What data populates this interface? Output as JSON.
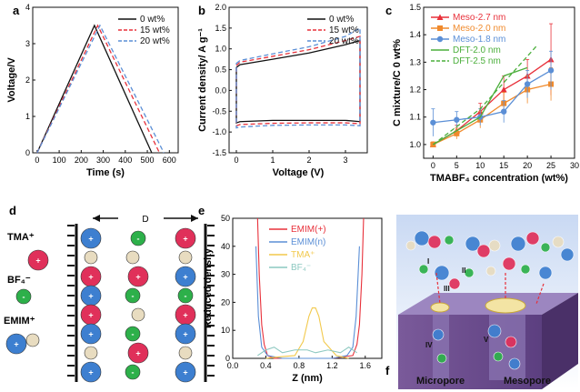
{
  "panel_letters": [
    "a",
    "b",
    "c",
    "d",
    "e",
    "f"
  ],
  "colors": {
    "black": "#111111",
    "red": "#e8303a",
    "blue": "#5b8fd6",
    "orange": "#f08a2c",
    "green": "#4caf3c",
    "teal": "#8cc8c0",
    "tma": "#e0305a",
    "bf4": "#2db04a",
    "emim": "#3d7fd0",
    "beige": "#e8dcc0"
  },
  "diagram_d": {
    "gap_label": "D",
    "legend": [
      {
        "label": "TMA⁺",
        "icon": "tma-ion"
      },
      {
        "label": "BF₄⁻",
        "icon": "bf4-ion"
      },
      {
        "label": "EMIM⁺",
        "icon": "emim-ion"
      }
    ]
  },
  "diagram_f": {
    "labels": [
      "Micropore",
      "Mesopore"
    ],
    "markers": [
      "I",
      "II",
      "III",
      "IV",
      "V"
    ]
  },
  "chart_data": [
    {
      "panel": "a",
      "type": "line",
      "xlabel": "Time (s)",
      "ylabel": "Voltage/V",
      "xlim": [
        -20,
        640
      ],
      "ylim": [
        0,
        4
      ],
      "xticks": [
        0,
        100,
        200,
        300,
        400,
        500,
        600
      ],
      "yticks": [
        0,
        1,
        2,
        3,
        4
      ],
      "legend_position": "top-right",
      "series": [
        {
          "name": "0 wt%",
          "style": "solid",
          "color": "#111111",
          "x": [
            0,
            260,
            520
          ],
          "y": [
            0,
            3.5,
            0
          ]
        },
        {
          "name": "15 wt%",
          "style": "dashed",
          "color": "#e8303a",
          "x": [
            0,
            275,
            555
          ],
          "y": [
            0,
            3.5,
            0
          ]
        },
        {
          "name": "20 wt%",
          "style": "dashed",
          "color": "#5b8fd6",
          "x": [
            0,
            285,
            575
          ],
          "y": [
            0,
            3.5,
            0
          ]
        }
      ]
    },
    {
      "panel": "b",
      "type": "line",
      "xlabel": "Voltage (V)",
      "ylabel": "Current density/ A g⁻¹",
      "xlim": [
        -0.2,
        3.6
      ],
      "ylim": [
        -1.5,
        2.0
      ],
      "xticks": [
        0,
        1,
        2,
        3
      ],
      "yticks": [
        -1.5,
        -1.0,
        -0.5,
        0.0,
        0.5,
        1.0,
        1.5,
        2.0
      ],
      "legend_position": "top-right",
      "series": [
        {
          "name": "0 wt%",
          "style": "solid",
          "color": "#111111",
          "upper": [
            [
              0,
              0.55
            ],
            [
              0.1,
              0.62
            ],
            [
              1,
              0.75
            ],
            [
              2,
              0.9
            ],
            [
              3,
              1.1
            ],
            [
              3.4,
              1.2
            ]
          ],
          "lower": [
            [
              3.4,
              -0.75
            ],
            [
              3,
              -0.72
            ],
            [
              2,
              -0.72
            ],
            [
              1,
              -0.72
            ],
            [
              0.1,
              -0.75
            ],
            [
              0,
              -0.78
            ]
          ]
        },
        {
          "name": "15 wt%",
          "style": "dashed",
          "color": "#e8303a",
          "upper": [
            [
              0,
              0.6
            ],
            [
              0.1,
              0.68
            ],
            [
              1,
              0.82
            ],
            [
              2,
              0.98
            ],
            [
              3,
              1.2
            ],
            [
              3.4,
              1.3
            ]
          ],
          "lower": [
            [
              3.4,
              -0.8
            ],
            [
              3,
              -0.78
            ],
            [
              2,
              -0.78
            ],
            [
              1,
              -0.79
            ],
            [
              0.1,
              -0.82
            ],
            [
              0,
              -0.85
            ]
          ]
        },
        {
          "name": "20 wt%",
          "style": "dashed",
          "color": "#5b8fd6",
          "upper": [
            [
              0,
              0.65
            ],
            [
              0.1,
              0.72
            ],
            [
              1,
              0.88
            ],
            [
              2,
              1.05
            ],
            [
              3,
              1.3
            ],
            [
              3.4,
              1.5
            ]
          ],
          "lower": [
            [
              3.4,
              -0.85
            ],
            [
              3,
              -0.83
            ],
            [
              2,
              -0.83
            ],
            [
              1,
              -0.84
            ],
            [
              0.1,
              -0.88
            ],
            [
              0,
              -0.9
            ]
          ]
        }
      ]
    },
    {
      "panel": "c",
      "type": "line",
      "xlabel": "TMABF₄ concentration (wt%)",
      "ylabel": "C mixture/C 0 wt%",
      "xlim": [
        -2,
        30
      ],
      "ylim": [
        0.95,
        1.5
      ],
      "xticks": [
        0,
        5,
        10,
        15,
        20,
        25,
        30
      ],
      "yticks": [
        1.0,
        1.1,
        1.2,
        1.3,
        1.4,
        1.5
      ],
      "legend_position": "top-left",
      "series": [
        {
          "name": "Meso-2.7 nm",
          "style": "solid",
          "marker": "triangle",
          "color": "#e8303a",
          "x": [
            0,
            5,
            10,
            15,
            20,
            25
          ],
          "y": [
            1.0,
            1.05,
            1.12,
            1.2,
            1.25,
            1.31
          ],
          "err": [
            0.01,
            0.02,
            0.03,
            0.05,
            0.06,
            0.13
          ]
        },
        {
          "name": "Meso-2.0 nm",
          "style": "solid",
          "marker": "square",
          "color": "#f08a2c",
          "x": [
            0,
            5,
            10,
            15,
            20,
            25
          ],
          "y": [
            1.0,
            1.04,
            1.09,
            1.15,
            1.2,
            1.22
          ],
          "err": [
            0.01,
            0.02,
            0.03,
            0.04,
            0.05,
            0.06
          ]
        },
        {
          "name": "Meso-1.8 nm",
          "style": "solid",
          "marker": "circle",
          "color": "#5b8fd6",
          "x": [
            0,
            5,
            10,
            15,
            20,
            25
          ],
          "y": [
            1.08,
            1.09,
            1.1,
            1.12,
            1.22,
            1.27
          ],
          "err": [
            0.05,
            0.03,
            0.03,
            0.04,
            0.05,
            0.07
          ]
        },
        {
          "name": "DFT-2.0 nm",
          "style": "solid",
          "marker": "none",
          "color": "#4caf3c",
          "x": [
            0,
            10,
            15,
            20
          ],
          "y": [
            1.0,
            1.1,
            1.25,
            1.28
          ]
        },
        {
          "name": "DFT-2.5 nm",
          "style": "dashed",
          "marker": "none",
          "color": "#4caf3c",
          "x": [
            0,
            10,
            22
          ],
          "y": [
            1.0,
            1.13,
            1.36
          ]
        }
      ]
    },
    {
      "panel": "e",
      "type": "line",
      "xlabel": "Z (nm)",
      "ylabel": "Reduced density",
      "xlim": [
        0.0,
        1.8
      ],
      "ylim": [
        0,
        50
      ],
      "xticks": [
        0.0,
        0.4,
        0.8,
        1.2,
        1.6
      ],
      "yticks": [
        0,
        10,
        20,
        30,
        40,
        50
      ],
      "legend_position": "top-center",
      "series": [
        {
          "name": "EMIM(+)",
          "color": "#e8303a",
          "x": [
            0.3,
            0.32,
            0.35,
            0.38,
            0.42,
            0.5,
            0.8,
            1.2,
            1.45,
            1.5,
            1.53,
            1.56,
            1.58
          ],
          "y": [
            50,
            30,
            12,
            5,
            1,
            0,
            0,
            0,
            1,
            5,
            12,
            30,
            50
          ]
        },
        {
          "name": "EMIM(n)",
          "color": "#5b8fd6",
          "x": [
            0.28,
            0.31,
            0.35,
            0.42,
            0.6,
            0.9,
            1.2,
            1.38,
            1.45,
            1.49,
            1.53
          ],
          "y": [
            40,
            15,
            4,
            1,
            0,
            0,
            0,
            1,
            4,
            15,
            40
          ]
        },
        {
          "name": "TMA⁺",
          "color": "#f2c94c",
          "x": [
            0.4,
            0.55,
            0.75,
            0.85,
            0.92,
            0.96,
            1.0,
            1.04,
            1.1,
            1.25,
            1.4
          ],
          "y": [
            0,
            0.5,
            1,
            6,
            15,
            18,
            18,
            15,
            6,
            1,
            0
          ]
        },
        {
          "name": "BF₄⁻",
          "color": "#8cc8c0",
          "x": [
            0.3,
            0.4,
            0.5,
            0.6,
            0.75,
            0.9,
            1.0,
            1.15,
            1.3,
            1.4,
            1.5
          ],
          "y": [
            1,
            3,
            4,
            2,
            3,
            3,
            2,
            3,
            2,
            4,
            2
          ]
        }
      ]
    }
  ]
}
